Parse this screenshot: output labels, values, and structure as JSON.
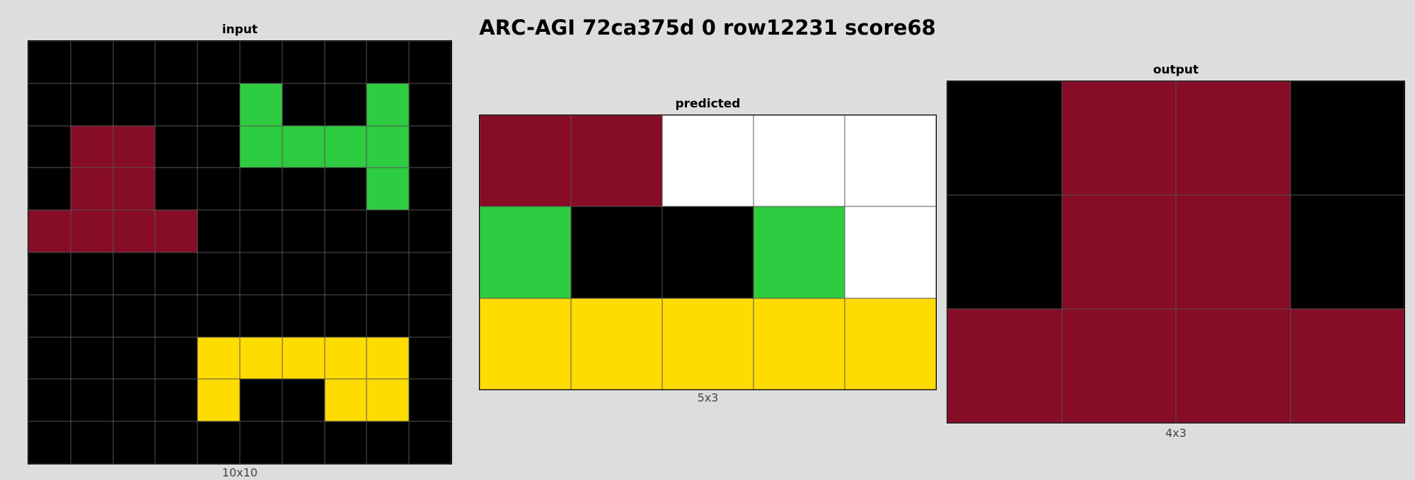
{
  "title": "ARC-AGI 72ca375d 0 row12231 score68",
  "palette": {
    "0": "#000000",
    "3": "#2ECC40",
    "4": "#FFDC00",
    "8": "#870C25",
    "w": "#FFFFFF"
  },
  "panels": {
    "input": {
      "title": "input",
      "dims": "10x10",
      "rows": [
        [
          0,
          0,
          0,
          0,
          0,
          0,
          0,
          0,
          0,
          0
        ],
        [
          0,
          0,
          0,
          0,
          0,
          3,
          0,
          0,
          3,
          0
        ],
        [
          0,
          8,
          8,
          0,
          0,
          3,
          3,
          3,
          3,
          0
        ],
        [
          0,
          8,
          8,
          0,
          0,
          0,
          0,
          0,
          3,
          0
        ],
        [
          8,
          8,
          8,
          8,
          0,
          0,
          0,
          0,
          0,
          0
        ],
        [
          0,
          0,
          0,
          0,
          0,
          0,
          0,
          0,
          0,
          0
        ],
        [
          0,
          0,
          0,
          0,
          0,
          0,
          0,
          0,
          0,
          0
        ],
        [
          0,
          0,
          0,
          0,
          4,
          4,
          4,
          4,
          4,
          0
        ],
        [
          0,
          0,
          0,
          0,
          4,
          0,
          0,
          4,
          4,
          0
        ],
        [
          0,
          0,
          0,
          0,
          0,
          0,
          0,
          0,
          0,
          0
        ]
      ]
    },
    "predicted": {
      "title": "predicted",
      "dims": "5x3",
      "rows": [
        [
          8,
          8,
          "w",
          "w",
          "w"
        ],
        [
          3,
          0,
          0,
          3,
          "w"
        ],
        [
          4,
          4,
          4,
          4,
          4
        ]
      ]
    },
    "output": {
      "title": "output",
      "dims": "4x3",
      "rows": [
        [
          0,
          8,
          8,
          0
        ],
        [
          0,
          8,
          8,
          0
        ],
        [
          8,
          8,
          8,
          8
        ]
      ]
    }
  }
}
